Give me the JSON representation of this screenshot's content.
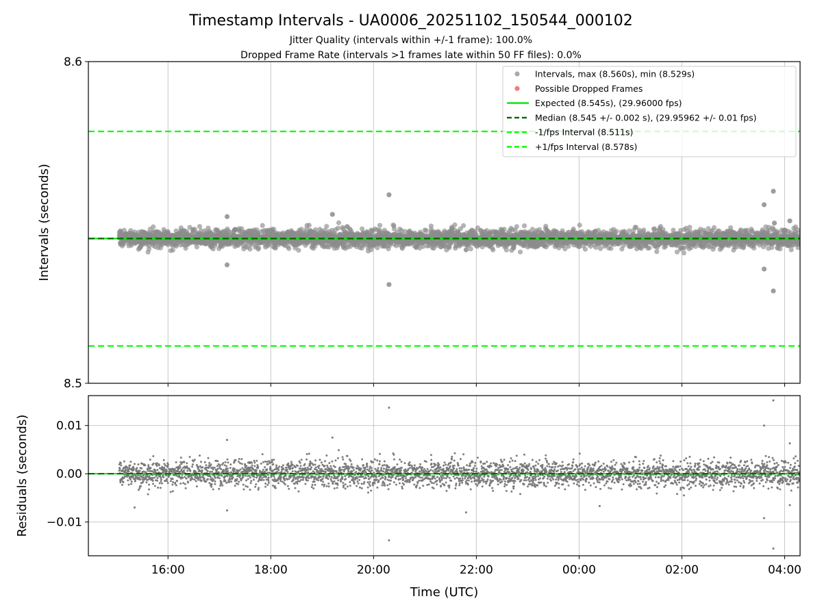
{
  "chart_data": [
    {
      "type": "scatter",
      "title": "Timestamp Intervals - UA0006_20251102_150544_000102",
      "subtitle_lines": [
        "Jitter Quality (intervals within +/-1 frame): 100.0%",
        "Dropped Frame Rate (intervals >1 frames late within 50 FF files): 0.0%"
      ],
      "ylabel": "Intervals (seconds)",
      "xlabel": "",
      "ylim": [
        8.5,
        8.6
      ],
      "y_ticks": [
        "8.5",
        "8.6"
      ],
      "xlim_hours": [
        14.45,
        28.3
      ],
      "x_ticks": [
        16,
        18,
        20,
        22,
        24,
        26,
        28
      ],
      "x_tick_labels": [
        "16:00",
        "18:00",
        "20:00",
        "22:00",
        "00:00",
        "02:00",
        "04:00"
      ],
      "grid": "vertical",
      "legend_position": "upper-right",
      "colors": {
        "intervals": "#8c8c8c",
        "dropped": "#f0504a",
        "expected": "#00e600",
        "median": "#006400",
        "fps_bounds": "#00ff00"
      },
      "series": [
        {
          "name": "Intervals, max (8.560s), min (8.529s)",
          "kind": "points",
          "x_range": [
            15.05,
            28.3
          ],
          "center": 8.545,
          "spread": 0.0025,
          "outliers": [
            [
              20.3,
              8.5586
            ],
            [
              20.3,
              8.5307
            ],
            [
              27.78,
              8.5597
            ],
            [
              27.78,
              8.5287
            ],
            [
              27.6,
              8.5555
            ],
            [
              27.6,
              8.5355
            ],
            [
              19.2,
              8.5525
            ],
            [
              17.15,
              8.5518
            ],
            [
              17.15,
              8.5368
            ],
            [
              21.8,
              8.5415
            ],
            [
              27.8,
              8.5498
            ],
            [
              28.1,
              8.5505
            ]
          ]
        },
        {
          "name": "Possible Dropped Frames",
          "kind": "points",
          "values": []
        },
        {
          "name": "Expected (8.545s), (29.96000 fps)",
          "kind": "hline",
          "y": 8.545,
          "style": "solid"
        },
        {
          "name": "Median (8.545 +/- 0.002 s), (29.95962 +/- 0.01 fps)",
          "kind": "hline",
          "y": 8.545,
          "style": "dashed"
        },
        {
          "name": "-1/fps Interval (8.511s)",
          "kind": "hline",
          "y": 8.5116,
          "style": "dashed"
        },
        {
          "name": "+1/fps Interval (8.578s)",
          "kind": "hline",
          "y": 8.5783,
          "style": "dashed"
        }
      ]
    },
    {
      "type": "scatter",
      "title": "",
      "ylabel": "Residuals (seconds)",
      "xlabel": "Time (UTC)",
      "ylim": [
        -0.017,
        0.0162
      ],
      "y_ticks": [
        -0.01,
        0.0,
        0.01
      ],
      "y_tick_labels": [
        "−0.01",
        "0.00",
        "0.01"
      ],
      "xlim_hours": [
        14.45,
        28.3
      ],
      "x_ticks": [
        16,
        18,
        20,
        22,
        24,
        26,
        28
      ],
      "x_tick_labels": [
        "16:00",
        "18:00",
        "20:00",
        "22:00",
        "00:00",
        "02:00",
        "04:00"
      ],
      "grid": "both",
      "series": [
        {
          "name": "",
          "kind": "points",
          "x_range": [
            15.05,
            28.3
          ],
          "center": 0.0,
          "spread": 0.0025,
          "outliers": [
            [
              20.3,
              0.0137
            ],
            [
              20.3,
              -0.0138
            ],
            [
              27.78,
              0.0152
            ],
            [
              27.78,
              -0.0155
            ],
            [
              27.6,
              0.01
            ],
            [
              27.6,
              -0.0092
            ],
            [
              19.2,
              0.0075
            ],
            [
              17.15,
              0.007
            ],
            [
              17.15,
              -0.0076
            ],
            [
              15.35,
              -0.007
            ],
            [
              21.8,
              -0.008
            ],
            [
              28.1,
              0.0063
            ],
            [
              28.1,
              -0.0065
            ],
            [
              24.4,
              -0.0067
            ]
          ]
        },
        {
          "name": "",
          "kind": "hline",
          "y": 0.0,
          "style": "solid"
        },
        {
          "name": "",
          "kind": "hline",
          "y": 0.0,
          "style": "dashed"
        }
      ]
    }
  ]
}
